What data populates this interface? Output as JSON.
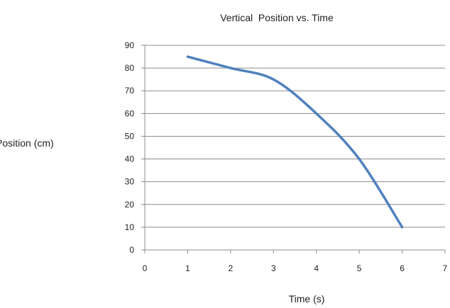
{
  "chart_data": {
    "type": "line",
    "title": "Vertical  Position vs. Time",
    "xlabel": "Time (s)",
    "ylabel": "Position (cm)",
    "xlim": [
      0,
      7
    ],
    "ylim": [
      0,
      90
    ],
    "x_ticks": [
      0,
      1,
      2,
      3,
      4,
      5,
      6,
      7
    ],
    "y_ticks": [
      0,
      10,
      20,
      30,
      40,
      50,
      60,
      70,
      80,
      90
    ],
    "grid": "horizontal",
    "legend": "none",
    "series": [
      {
        "color": "#4f81bd",
        "smooth": true,
        "x": [
          1,
          2,
          3,
          4,
          5,
          6
        ],
        "y": [
          85,
          80,
          75,
          60,
          40,
          10
        ]
      }
    ]
  }
}
